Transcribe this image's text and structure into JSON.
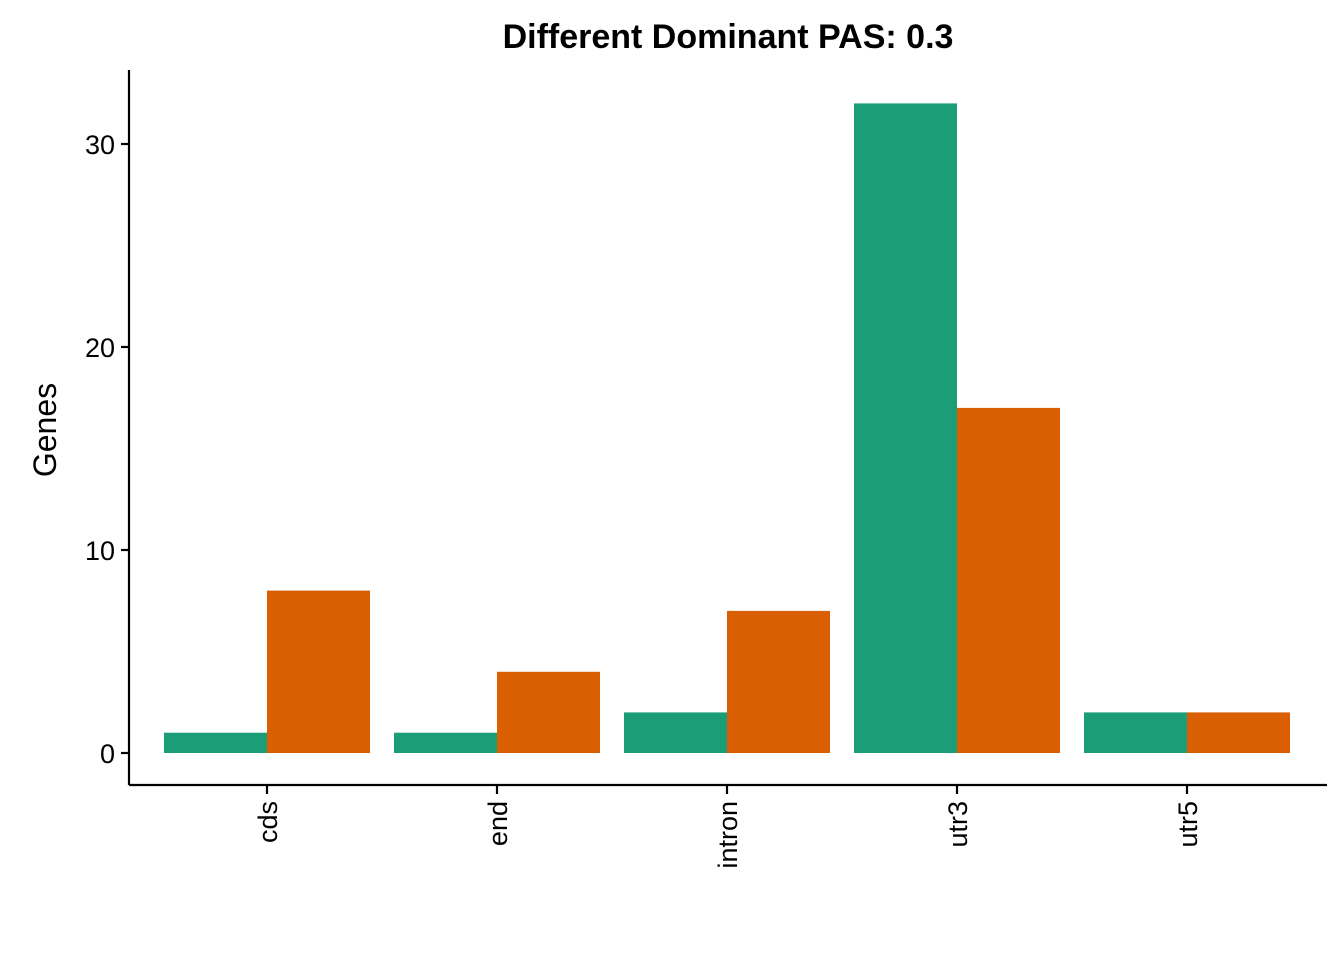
{
  "chart_data": {
    "type": "bar",
    "title": "Different Dominant PAS: 0.3",
    "xlabel": "",
    "ylabel": "Genes",
    "categories": [
      "cds",
      "end",
      "intron",
      "utr3",
      "utr5"
    ],
    "series": [
      {
        "values": [
          1,
          1,
          2,
          32,
          2
        ],
        "color": "#1b9e77"
      },
      {
        "values": [
          8,
          4,
          7,
          17,
          2
        ],
        "color": "#d95f02"
      }
    ],
    "ylim": [
      0,
      33
    ],
    "yticks": [
      0,
      10,
      20,
      30
    ],
    "grid": false,
    "legend": "none"
  }
}
